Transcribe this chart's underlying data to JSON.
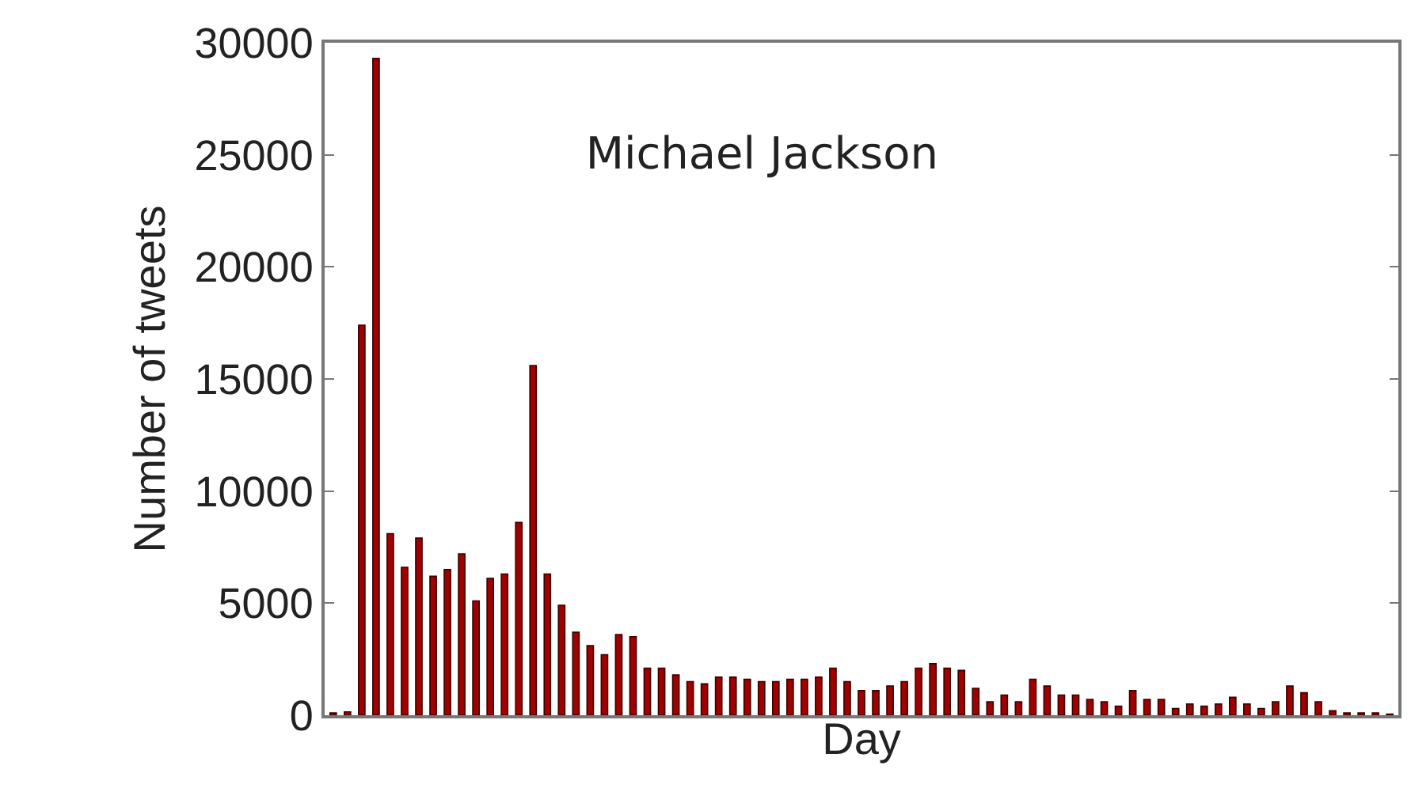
{
  "chart_data": {
    "type": "bar",
    "title": "Michael Jackson",
    "xlabel": "Day",
    "ylabel": "Number of tweets",
    "categories": [
      null,
      null,
      null,
      null,
      null,
      null,
      null,
      null,
      null,
      null,
      null,
      null,
      null,
      null,
      null,
      null,
      null,
      null,
      null,
      null,
      null,
      null,
      null,
      null,
      null,
      null,
      null,
      null,
      null,
      null,
      null,
      null,
      null,
      null,
      null,
      null,
      null,
      null,
      null,
      null,
      null,
      null,
      null,
      null,
      null,
      null,
      null,
      null,
      null,
      null,
      null,
      null,
      null,
      null,
      null,
      null,
      null,
      null,
      null,
      null,
      null,
      null,
      null,
      null,
      null,
      null,
      null,
      null,
      null,
      null,
      null,
      null,
      null,
      null,
      null
    ],
    "values": [
      100,
      150,
      17400,
      29300,
      8100,
      6600,
      7900,
      6200,
      6500,
      7200,
      5100,
      6100,
      6300,
      8600,
      15600,
      6300,
      4900,
      3700,
      3100,
      2700,
      3600,
      3500,
      2100,
      2100,
      1800,
      1500,
      1400,
      1700,
      1700,
      1600,
      1500,
      1500,
      1600,
      1600,
      1700,
      2100,
      1500,
      1100,
      1100,
      1300,
      1500,
      2100,
      2300,
      2100,
      2000,
      1200,
      600,
      900,
      600,
      1600,
      1300,
      900,
      900,
      700,
      600,
      400,
      1100,
      700,
      700,
      300,
      500,
      400,
      500,
      800,
      500,
      300,
      600,
      1300,
      1000,
      600,
      200,
      100,
      100,
      100,
      50
    ],
    "color": "#a00000",
    "ylim": [
      0,
      30000
    ],
    "yticks": [
      0,
      5000,
      10000,
      15000,
      20000,
      25000,
      30000
    ],
    "legend": false,
    "tick_labels": "y"
  }
}
